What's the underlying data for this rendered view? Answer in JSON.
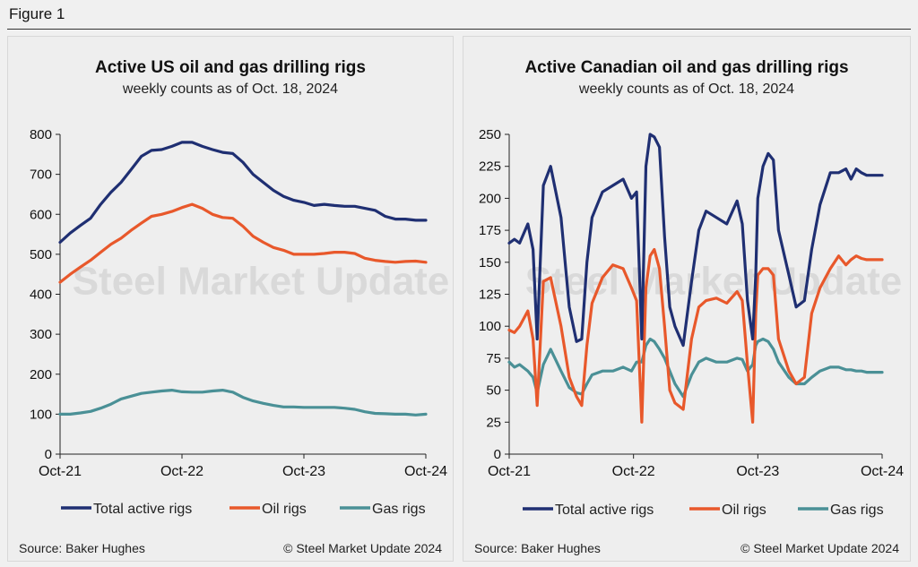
{
  "figure_label": "Figure 1",
  "watermark": "Steel Market Update",
  "colors": {
    "total": "#1f2f72",
    "oil": "#e8582b",
    "gas": "#4a9096"
  },
  "panels": [
    {
      "title": "Active US oil and gas drilling rigs",
      "subtitle": "weekly counts as of Oct. 18, 2024",
      "source": "Source: Baker Hughes",
      "copyright": "© Steel Market Update 2024"
    },
    {
      "title": "Active Canadian oil and gas drilling rigs",
      "subtitle": "weekly counts as of Oct. 18, 2024",
      "source": "Source: Baker Hughes",
      "copyright": "© Steel Market Update 2024"
    }
  ],
  "chart_data": [
    {
      "type": "line",
      "title": "Active US oil and gas drilling rigs",
      "subtitle": "weekly counts as of Oct. 18, 2024",
      "x_ticks": [
        "Oct-21",
        "Oct-22",
        "Oct-23",
        "Oct-24"
      ],
      "x_range": [
        0,
        36
      ],
      "ylim": [
        0,
        800
      ],
      "y_ticks": [
        0,
        100,
        200,
        300,
        400,
        500,
        600,
        700,
        800
      ],
      "legend_position": "bottom",
      "grid": false,
      "series": [
        {
          "name": "Total active rigs",
          "color": "#1f2f72",
          "x": [
            0,
            1,
            2,
            3,
            4,
            5,
            6,
            7,
            8,
            9,
            10,
            11,
            12,
            13,
            14,
            15,
            16,
            17,
            18,
            19,
            20,
            21,
            22,
            23,
            24,
            25,
            26,
            27,
            28,
            29,
            30,
            31,
            32,
            33,
            34,
            35,
            36
          ],
          "values": [
            530,
            553,
            572,
            590,
            625,
            655,
            680,
            712,
            745,
            760,
            762,
            770,
            780,
            780,
            770,
            762,
            755,
            752,
            730,
            700,
            680,
            660,
            645,
            635,
            630,
            622,
            625,
            622,
            620,
            620,
            615,
            610,
            595,
            588,
            588,
            585,
            585
          ]
        },
        {
          "name": "Oil rigs",
          "color": "#e8582b",
          "x": [
            0,
            1,
            2,
            3,
            4,
            5,
            6,
            7,
            8,
            9,
            10,
            11,
            12,
            13,
            14,
            15,
            16,
            17,
            18,
            19,
            20,
            21,
            22,
            23,
            24,
            25,
            26,
            27,
            28,
            29,
            30,
            31,
            32,
            33,
            34,
            35,
            36
          ],
          "values": [
            430,
            450,
            468,
            485,
            505,
            525,
            540,
            560,
            578,
            595,
            600,
            607,
            617,
            625,
            615,
            600,
            592,
            590,
            570,
            545,
            530,
            517,
            510,
            500,
            500,
            500,
            502,
            505,
            505,
            502,
            490,
            485,
            482,
            480,
            482,
            483,
            480
          ]
        },
        {
          "name": "Gas rigs",
          "color": "#4a9096",
          "x": [
            0,
            1,
            2,
            3,
            4,
            5,
            6,
            7,
            8,
            9,
            10,
            11,
            12,
            13,
            14,
            15,
            16,
            17,
            18,
            19,
            20,
            21,
            22,
            23,
            24,
            25,
            26,
            27,
            28,
            29,
            30,
            31,
            32,
            33,
            34,
            35,
            36
          ],
          "values": [
            100,
            100,
            103,
            107,
            115,
            125,
            138,
            145,
            152,
            155,
            158,
            160,
            156,
            155,
            155,
            158,
            160,
            155,
            142,
            133,
            127,
            122,
            118,
            118,
            117,
            117,
            117,
            117,
            115,
            112,
            106,
            102,
            101,
            100,
            100,
            98,
            100
          ]
        }
      ]
    },
    {
      "type": "line",
      "title": "Active Canadian oil and gas drilling rigs",
      "subtitle": "weekly counts as of Oct. 18, 2024",
      "x_ticks": [
        "Oct-21",
        "Oct-22",
        "Oct-23",
        "Oct-24"
      ],
      "x_range": [
        0,
        36
      ],
      "ylim": [
        0,
        250
      ],
      "y_ticks": [
        0,
        25,
        50,
        75,
        100,
        125,
        150,
        175,
        200,
        225,
        250
      ],
      "legend_position": "bottom",
      "grid": false,
      "series": [
        {
          "name": "Total active rigs",
          "color": "#1f2f72",
          "x": [
            0,
            0.5,
            1,
            1.8,
            2.3,
            2.7,
            3.3,
            4,
            5,
            5.8,
            6.5,
            7,
            7.5,
            8,
            9,
            10,
            11,
            11.8,
            12.3,
            12.8,
            13.2,
            13.6,
            14,
            14.5,
            15,
            15.5,
            16,
            16.8,
            17.6,
            18.3,
            19,
            20,
            21,
            22,
            22.5,
            23,
            23.5,
            23.8,
            24,
            24.5,
            25,
            25.5,
            26,
            27,
            27.7,
            28.5,
            29.2,
            30,
            31,
            31.8,
            32.5,
            33,
            33.5,
            34,
            34.5,
            35,
            35.5,
            36
          ],
          "values": [
            165,
            168,
            165,
            180,
            160,
            90,
            210,
            225,
            185,
            115,
            88,
            90,
            150,
            185,
            205,
            210,
            215,
            200,
            205,
            90,
            225,
            250,
            248,
            240,
            170,
            115,
            100,
            85,
            135,
            175,
            190,
            185,
            180,
            198,
            180,
            120,
            90,
            140,
            200,
            225,
            235,
            230,
            175,
            140,
            115,
            120,
            160,
            195,
            220,
            220,
            223,
            215,
            223,
            220,
            218,
            218,
            218,
            218
          ]
        },
        {
          "name": "Oil rigs",
          "color": "#e8582b",
          "x": [
            0,
            0.5,
            1,
            1.8,
            2.3,
            2.7,
            3.3,
            4,
            5,
            5.8,
            6.5,
            7,
            7.5,
            8,
            9,
            10,
            11,
            11.8,
            12.3,
            12.8,
            13.2,
            13.6,
            14,
            14.5,
            15,
            15.5,
            16,
            16.8,
            17.6,
            18.3,
            19,
            20,
            21,
            22,
            22.5,
            23,
            23.5,
            23.8,
            24,
            24.5,
            25,
            25.5,
            26,
            27,
            27.7,
            28.5,
            29.2,
            30,
            31,
            31.8,
            32.5,
            33,
            33.5,
            34,
            34.5,
            35,
            35.5,
            36
          ],
          "values": [
            97,
            95,
            100,
            112,
            90,
            38,
            135,
            138,
            100,
            60,
            45,
            38,
            85,
            118,
            138,
            148,
            145,
            130,
            120,
            25,
            130,
            155,
            160,
            145,
            100,
            50,
            40,
            35,
            90,
            115,
            120,
            122,
            118,
            127,
            120,
            70,
            25,
            110,
            140,
            145,
            145,
            140,
            90,
            65,
            55,
            60,
            110,
            130,
            145,
            155,
            148,
            152,
            155,
            153,
            152,
            152,
            152,
            152
          ]
        },
        {
          "name": "Gas rigs",
          "color": "#4a9096",
          "x": [
            0,
            0.5,
            1,
            1.8,
            2.3,
            2.7,
            3.3,
            4,
            5,
            5.8,
            6.5,
            7,
            7.5,
            8,
            9,
            10,
            11,
            11.8,
            12.3,
            12.8,
            13.2,
            13.6,
            14,
            14.5,
            15,
            15.5,
            16,
            16.8,
            17.6,
            18.3,
            19,
            20,
            21,
            22,
            22.5,
            23,
            23.5,
            23.8,
            24,
            24.5,
            25,
            25.5,
            26,
            27,
            27.7,
            28.5,
            29.2,
            30,
            31,
            31.8,
            32.5,
            33,
            33.5,
            34,
            34.5,
            35,
            35.5,
            36
          ],
          "values": [
            72,
            68,
            70,
            65,
            60,
            48,
            70,
            82,
            65,
            52,
            48,
            47,
            55,
            62,
            65,
            65,
            68,
            65,
            72,
            72,
            85,
            90,
            88,
            82,
            75,
            65,
            55,
            45,
            62,
            72,
            75,
            72,
            72,
            75,
            74,
            65,
            70,
            85,
            88,
            90,
            88,
            82,
            72,
            60,
            55,
            55,
            60,
            65,
            68,
            68,
            66,
            66,
            65,
            65,
            64,
            64,
            64,
            64
          ]
        }
      ]
    }
  ]
}
